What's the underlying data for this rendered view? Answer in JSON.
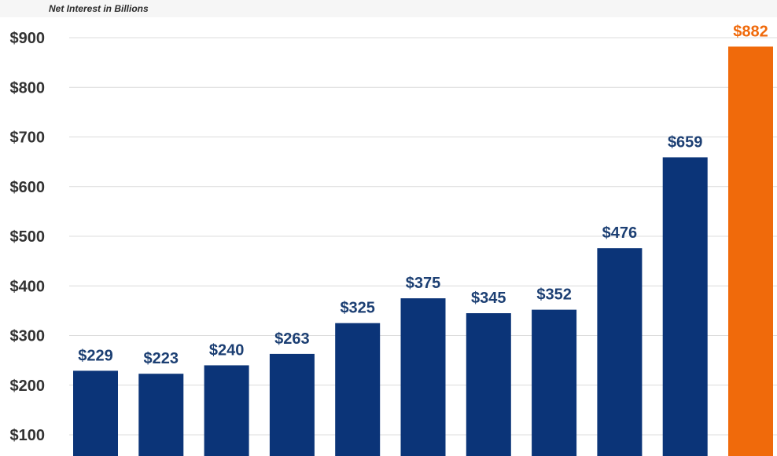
{
  "chart_data": {
    "type": "bar",
    "title": "",
    "subtitle": "Net Interest in Billions",
    "xlabel": "",
    "ylabel": "",
    "ylim": [
      0,
      900
    ],
    "y_ticks": [
      {
        "value": 900,
        "label": "$900"
      },
      {
        "value": 800,
        "label": "$800"
      },
      {
        "value": 700,
        "label": "$700"
      },
      {
        "value": 600,
        "label": "$600"
      },
      {
        "value": 500,
        "label": "$500"
      },
      {
        "value": 400,
        "label": "$400"
      },
      {
        "value": 300,
        "label": "$300"
      },
      {
        "value": 200,
        "label": "$200"
      },
      {
        "value": 100,
        "label": "$100"
      }
    ],
    "grid": true,
    "values": [
      229,
      223,
      240,
      263,
      325,
      375,
      345,
      352,
      476,
      659,
      882
    ],
    "data_labels": [
      "$229",
      "$223",
      "$240",
      "$263",
      "$325",
      "$375",
      "$345",
      "$352",
      "$476",
      "$659",
      "$882"
    ],
    "colors": {
      "bar": "#0b3478",
      "highlight_bar": "#f06a0b",
      "label": "#1c3f73",
      "highlight_label": "#f06a0b",
      "grid": "#dcdcdc"
    },
    "highlight_index": 10
  }
}
